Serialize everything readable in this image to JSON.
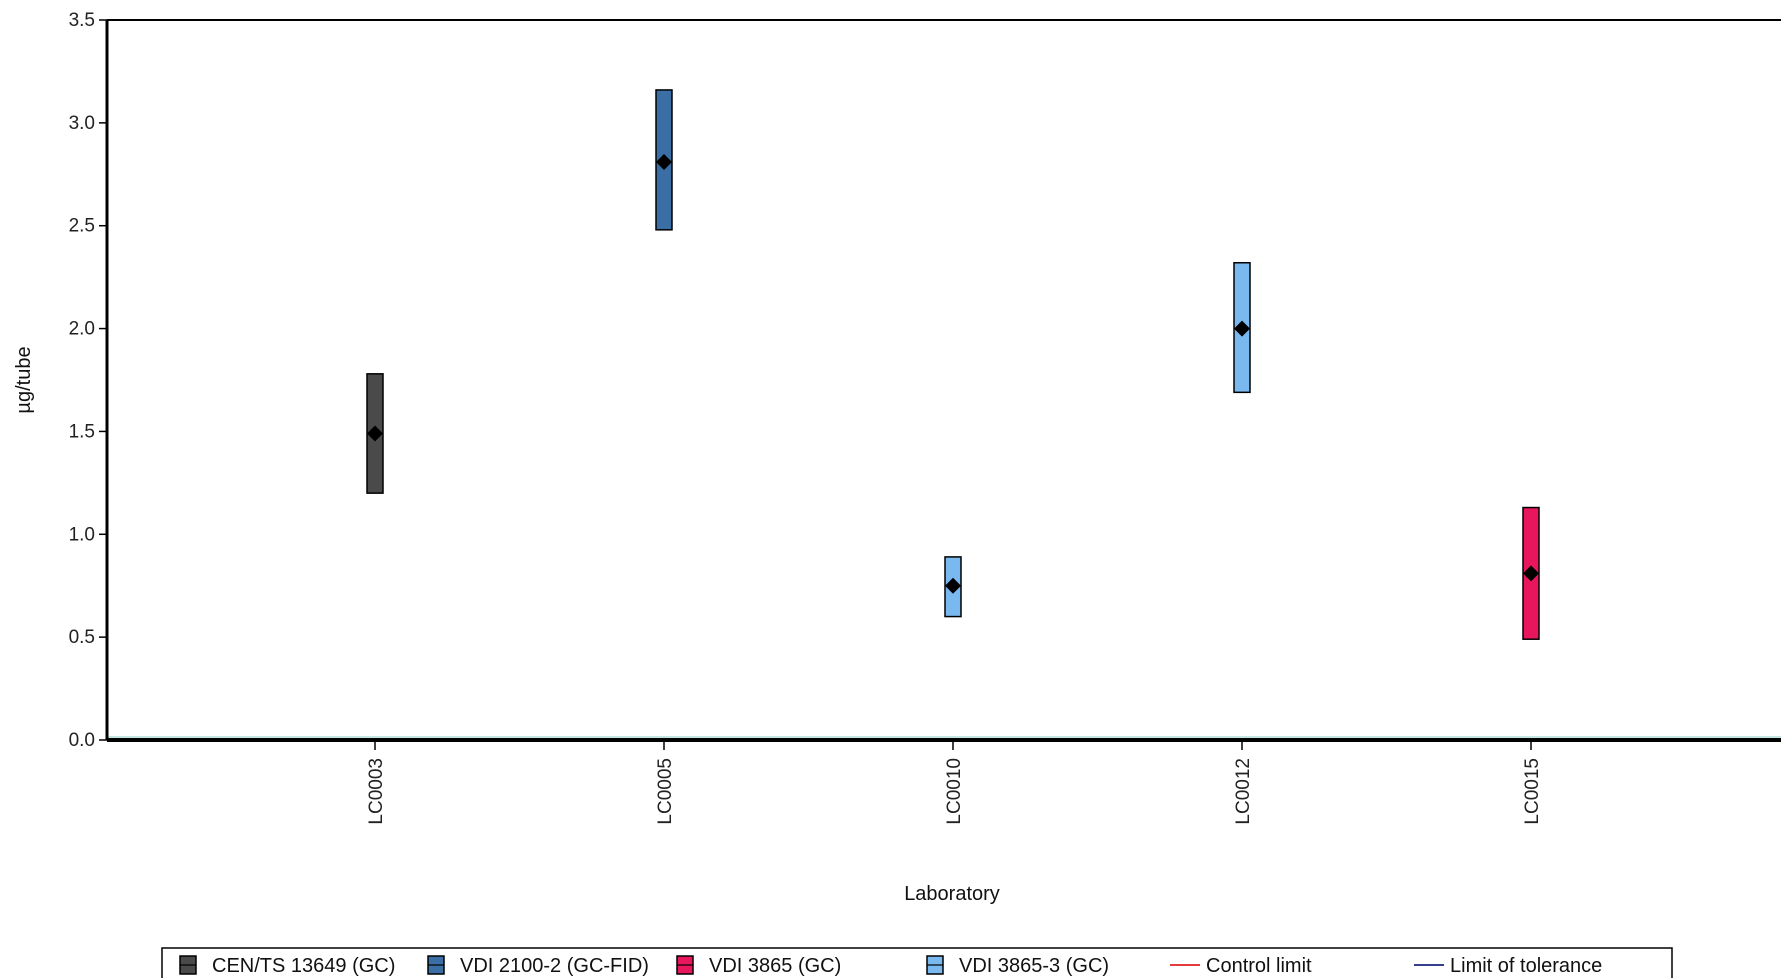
{
  "chart_data": {
    "type": "range-bar",
    "title": "",
    "xlabel": "Laboratory",
    "ylabel": "µg/tube",
    "ylim": [
      0.0,
      3.5
    ],
    "yticks": [
      "0.0",
      "0.5",
      "1.0",
      "1.5",
      "2.0",
      "2.5",
      "3.0",
      "3.5"
    ],
    "grid": false,
    "legend_position": "bottom",
    "categories": [
      "LC0003",
      "LC0005",
      "LC0010",
      "LC0012",
      "LC0015"
    ],
    "points": [
      {
        "lab": "LC0003",
        "method": "CEN/TS 13649 (GC)",
        "low": 1.2,
        "high": 1.78,
        "value": 1.49
      },
      {
        "lab": "LC0005",
        "method": "VDI 2100-2 (GC-FID)",
        "low": 2.48,
        "high": 3.16,
        "value": 2.81
      },
      {
        "lab": "LC0010",
        "method": "VDI 3865-3 (GC)",
        "low": 0.6,
        "high": 0.89,
        "value": 0.75
      },
      {
        "lab": "LC0012",
        "method": "VDI 3865-3 (GC)",
        "low": 1.69,
        "high": 2.32,
        "value": 2.0
      },
      {
        "lab": "LC0015",
        "method": "VDI 3865 (GC)",
        "low": 0.49,
        "high": 1.13,
        "value": 0.81
      }
    ],
    "legend": [
      {
        "label": "CEN/TS 13649 (GC)",
        "kind": "box",
        "color": "#4a4a4a"
      },
      {
        "label": "VDI 2100-2 (GC-FID)",
        "kind": "box",
        "color": "#3b6ea5"
      },
      {
        "label": "VDI 3865 (GC)",
        "kind": "box",
        "color": "#e8175d"
      },
      {
        "label": "VDI 3865-3 (GC)",
        "kind": "box",
        "color": "#7ab8f0"
      },
      {
        "label": "Control limit",
        "kind": "line",
        "color": "#e02020"
      },
      {
        "label": "Limit of tolerance",
        "kind": "line",
        "color": "#1a237e"
      }
    ],
    "method_colors": {
      "CEN/TS 13649 (GC)": "#4a4a4a",
      "VDI 2100-2 (GC-FID)": "#3b6ea5",
      "VDI 3865 (GC)": "#e8175d",
      "VDI 3865-3 (GC)": "#7ab8f0"
    },
    "baseline_color": "#b2dfdb"
  }
}
